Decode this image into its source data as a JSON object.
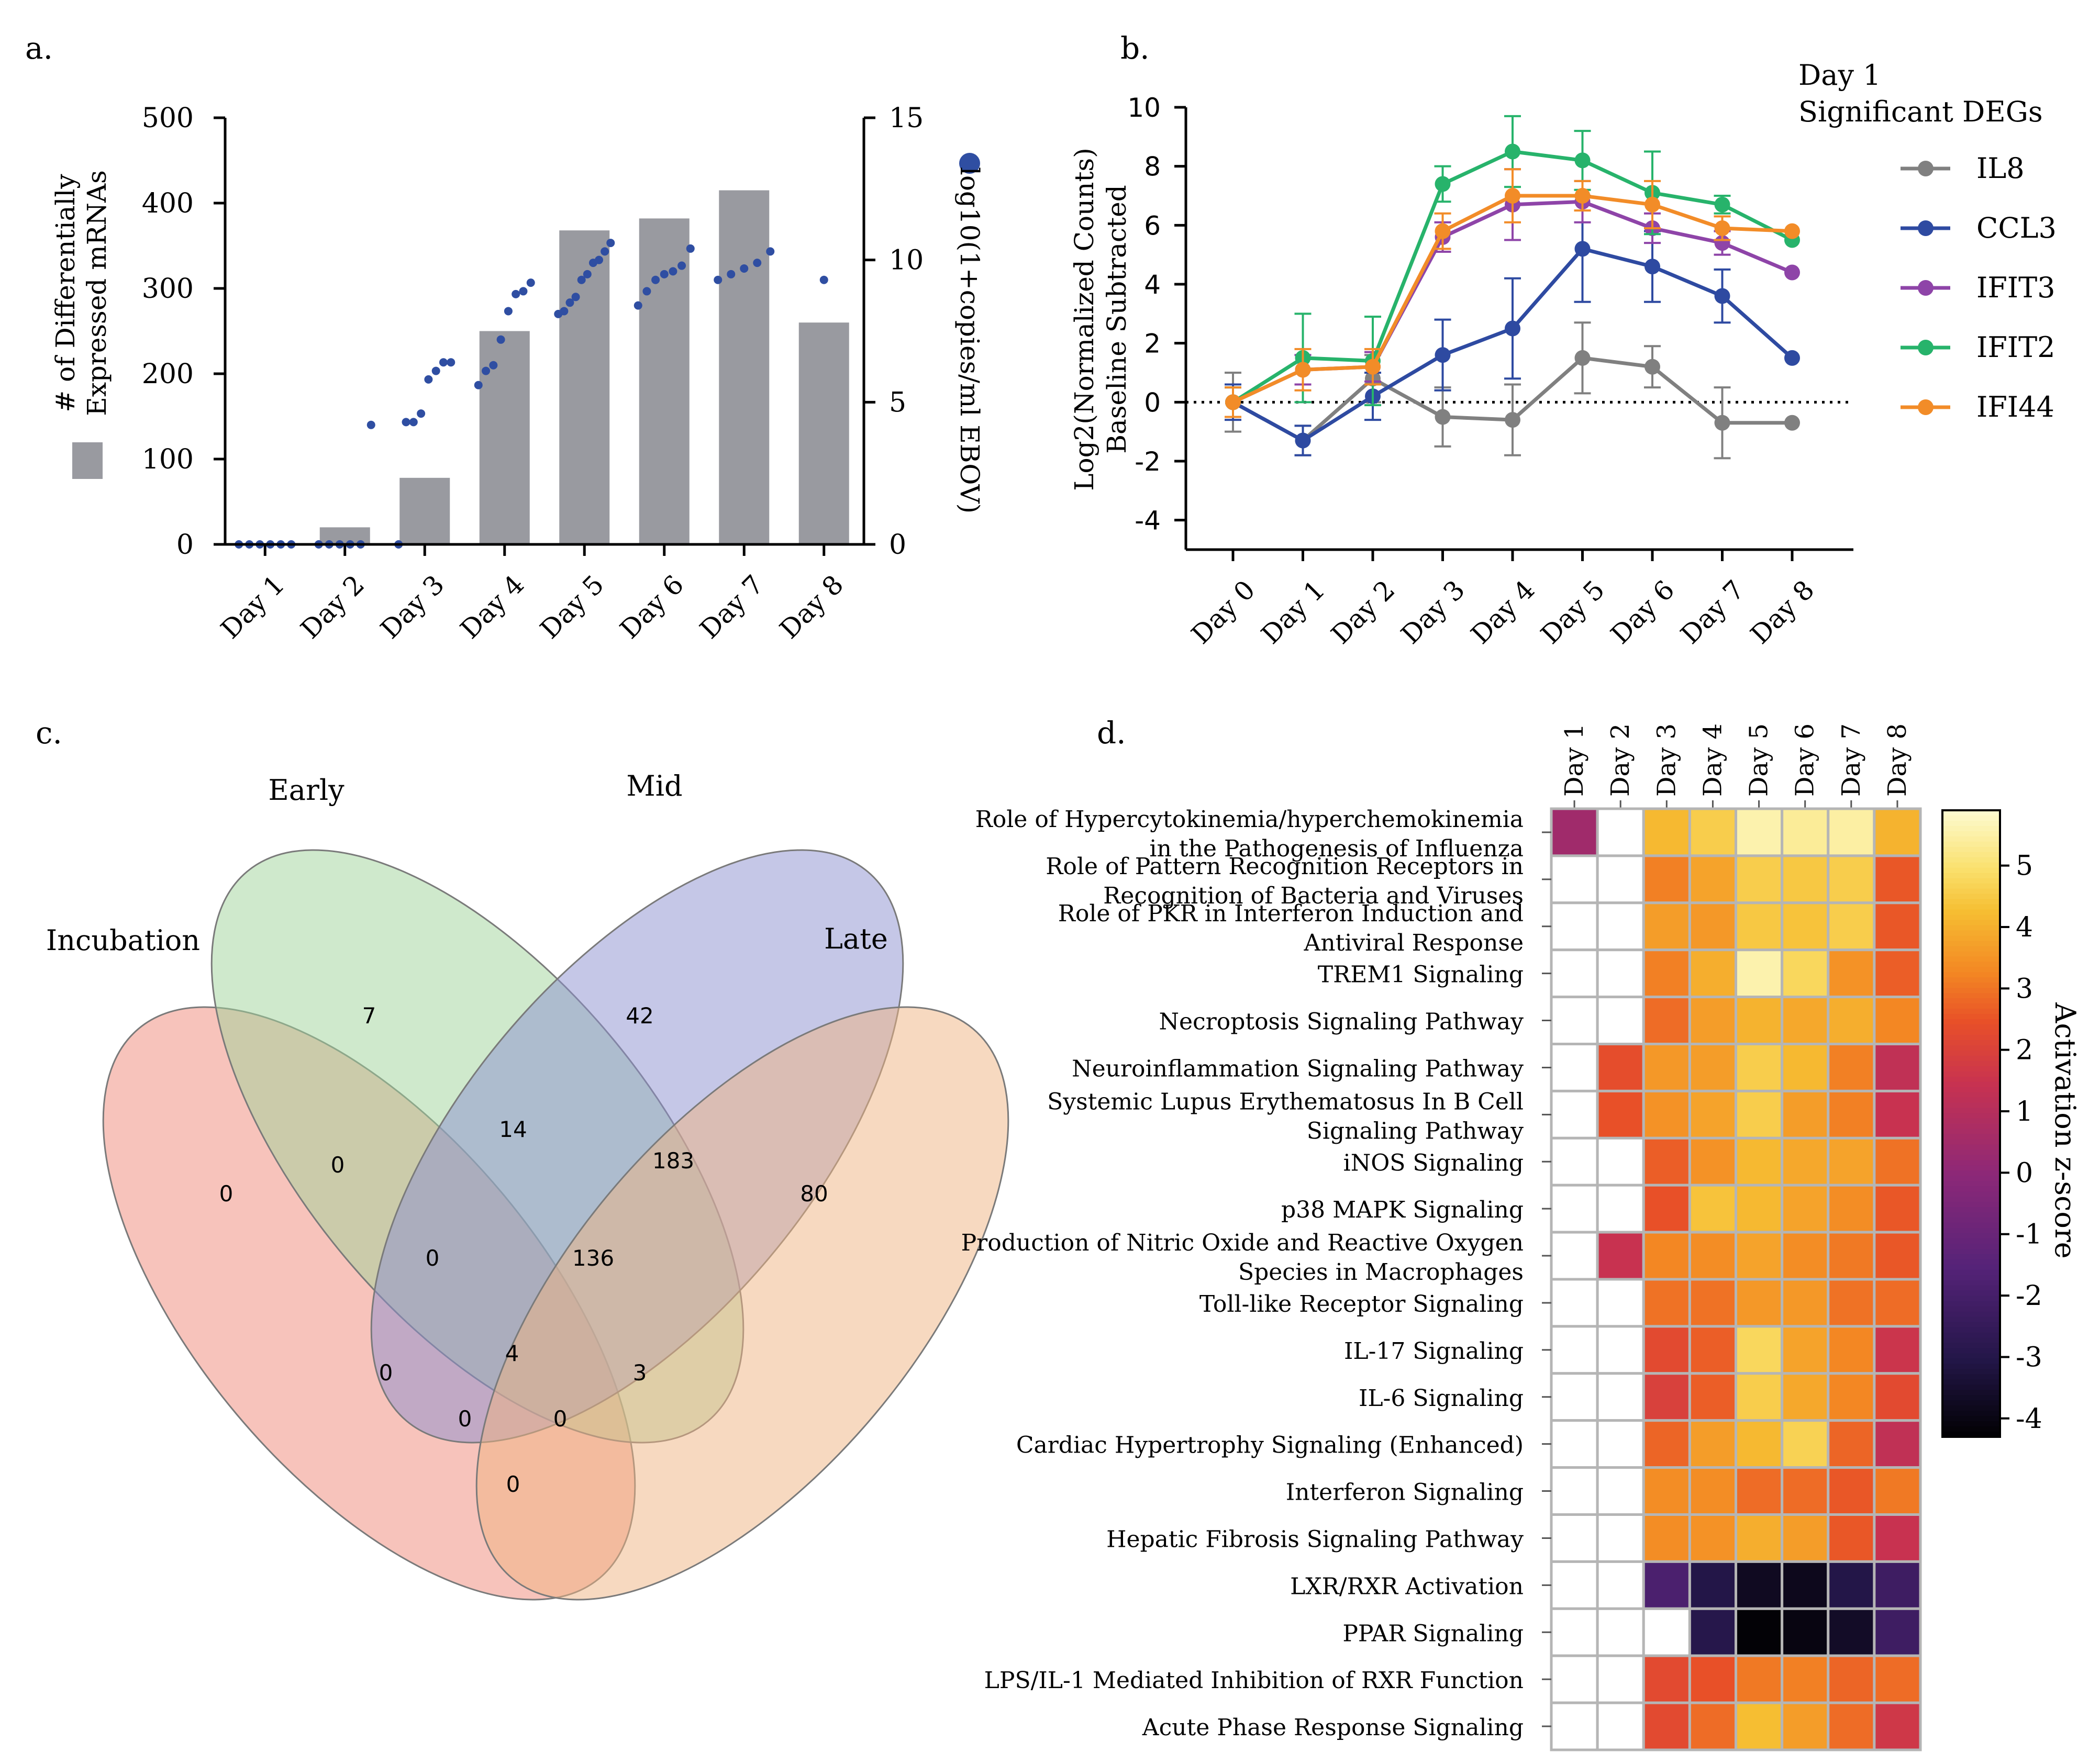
{
  "chart_data": [
    {
      "panel": "a.",
      "type": "bar",
      "categories": [
        "Day 1",
        "Day 2",
        "Day 3",
        "Day 4",
        "Day 5",
        "Day 6",
        "Day 7",
        "Day 8"
      ],
      "values": [
        0,
        20,
        78,
        250,
        368,
        382,
        415,
        260
      ],
      "ylabel_line1": "# of Differentially",
      "ylabel_line2": "Expressed mRNAs",
      "ylim": [
        0,
        500
      ],
      "yticks": [
        "0",
        "100",
        "200",
        "300",
        "400",
        "500"
      ],
      "y2label": "log10(1+copies/ml EBOV)",
      "y2ticks": [
        "0",
        "5",
        "10",
        "15"
      ],
      "y2lim": [
        0,
        15
      ],
      "scatter": [
        [
          0,
          0,
          0,
          0,
          0,
          0
        ],
        [
          0,
          0,
          0,
          0,
          0,
          4.2
        ],
        [
          0,
          4.3,
          4.3,
          4.6,
          5.8,
          6.1,
          6.4,
          6.4
        ],
        [
          5.6,
          6.1,
          6.3,
          7.2,
          8.2,
          8.8,
          8.9,
          9.2
        ],
        [
          8.1,
          8.2,
          8.5,
          8.7,
          9.3,
          9.5,
          9.9,
          10.0,
          10.3,
          10.6
        ],
        [
          8.4,
          8.9,
          9.3,
          9.5,
          9.6,
          9.8,
          10.4
        ],
        [
          9.3,
          9.5,
          9.7,
          9.9,
          10.3
        ],
        [
          9.3
        ]
      ]
    },
    {
      "panel": "b.",
      "type": "line",
      "categories": [
        "Day 0",
        "Day 1",
        "Day 2",
        "Day 3",
        "Day 4",
        "Day 5",
        "Day 6",
        "Day 7",
        "Day 8"
      ],
      "ylabel_line1": "Log2(Normalized Counts)",
      "ylabel_line2": "Baseline Subtracted",
      "ylim": [
        -5,
        10
      ],
      "yticks": [
        "-4",
        "-2",
        "0",
        "2",
        "4",
        "6",
        "8",
        "10"
      ],
      "legend_title_line1": "Day 1",
      "legend_title_line2": "Significant DEGs",
      "series": [
        {
          "name": "IL8",
          "color": "#808080",
          "values": [
            0,
            -1.3,
            0.8,
            -0.5,
            -0.6,
            1.5,
            1.2,
            -0.7,
            -0.7
          ],
          "err": [
            1.0,
            0.5,
            0.8,
            1.0,
            1.2,
            1.2,
            0.7,
            1.2,
            0
          ]
        },
        {
          "name": "CCL3",
          "color": "#2e4aa1",
          "values": [
            0,
            -1.3,
            0.2,
            1.6,
            2.5,
            5.2,
            4.6,
            3.6,
            1.5
          ],
          "err": [
            0.6,
            0.5,
            0.8,
            1.2,
            1.7,
            1.8,
            1.2,
            0.9,
            0
          ]
        },
        {
          "name": "IFIT3",
          "color": "#8e44a8",
          "values": [
            0,
            1.1,
            1.2,
            5.6,
            6.7,
            6.8,
            5.9,
            5.4,
            4.4
          ],
          "err": [
            0.5,
            0.5,
            0.5,
            0.5,
            1.2,
            0.7,
            0.5,
            0.4,
            0
          ]
        },
        {
          "name": "IFIT2",
          "color": "#27b36b",
          "values": [
            0,
            1.5,
            1.4,
            7.4,
            8.5,
            8.2,
            7.1,
            6.7,
            5.5
          ],
          "err": [
            0.5,
            1.5,
            1.5,
            0.6,
            1.2,
            1.0,
            1.4,
            0.3,
            0
          ]
        },
        {
          "name": "IFI44",
          "color": "#f28c28",
          "values": [
            0,
            1.1,
            1.2,
            5.8,
            7.0,
            7.0,
            6.7,
            5.9,
            5.8
          ],
          "err": [
            0.5,
            0.7,
            0.6,
            0.6,
            0.9,
            0.5,
            0.8,
            0.4,
            0
          ]
        }
      ]
    },
    {
      "panel": "c.",
      "type": "venn",
      "sets": [
        "Incubation",
        "Early",
        "Mid",
        "Late"
      ],
      "regions": [
        {
          "sets": "Incubation only",
          "value": "0"
        },
        {
          "sets": "Early only",
          "value": "7"
        },
        {
          "sets": "Mid only",
          "value": "42"
        },
        {
          "sets": "Late only",
          "value": "80"
        },
        {
          "sets": "Incubation & Early",
          "value": "0"
        },
        {
          "sets": "Early & Mid",
          "value": "14"
        },
        {
          "sets": "Mid & Late",
          "value": "183"
        },
        {
          "sets": "Incubation & Early & Mid",
          "value": "0"
        },
        {
          "sets": "Early & Mid & Late",
          "value": "136"
        },
        {
          "sets": "Incubation & Mid",
          "value": "0"
        },
        {
          "sets": "All four",
          "value": "4"
        },
        {
          "sets": "Early & Late",
          "value": "3"
        },
        {
          "sets": "Incubation & Mid & Late",
          "value": "0"
        },
        {
          "sets": "Incubation & Early & Late",
          "value": "0"
        },
        {
          "sets": "Incubation & Late",
          "value": "0"
        }
      ]
    },
    {
      "panel": "d.",
      "type": "heatmap",
      "columns": [
        "Day 1",
        "Day 2",
        "Day 3",
        "Day 4",
        "Day 5",
        "Day 6",
        "Day 7",
        "Day 8"
      ],
      "rows": [
        {
          "label": [
            "Role of Hypercytokinemia/hyperchemokinemia",
            "in the Pathogenesis of Influenza"
          ],
          "values": [
            0.5,
            null,
            4.2,
            4.6,
            5.6,
            5.4,
            5.5,
            4.1
          ]
        },
        {
          "label": [
            "Role of Pattern Recognition Receptors in",
            "Recognition of Bacteria and Viruses"
          ],
          "values": [
            null,
            null,
            3.2,
            3.8,
            4.6,
            4.5,
            4.6,
            2.6
          ]
        },
        {
          "label": [
            "Role of PKR in Interferon Induction and",
            "Antiviral Response"
          ],
          "values": [
            null,
            null,
            3.7,
            3.6,
            4.5,
            4.4,
            4.6,
            2.6
          ]
        },
        {
          "label": [
            "TREM1 Signaling"
          ],
          "values": [
            null,
            null,
            3.2,
            4.0,
            5.6,
            4.8,
            3.5,
            2.7
          ]
        },
        {
          "label": [
            "Necroptosis Signaling Pathway"
          ],
          "values": [
            null,
            null,
            2.9,
            3.7,
            4.1,
            3.9,
            4.0,
            3.3
          ]
        },
        {
          "label": [
            "Neuroinflammation Signaling Pathway"
          ],
          "values": [
            null,
            2.4,
            3.6,
            3.7,
            4.6,
            4.2,
            3.2,
            1.3
          ]
        },
        {
          "label": [
            "Systemic Lupus Erythematosus In B Cell",
            "Signaling Pathway"
          ],
          "values": [
            null,
            2.5,
            3.5,
            3.8,
            4.6,
            3.7,
            3.2,
            1.5
          ]
        },
        {
          "label": [
            "iNOS Signaling"
          ],
          "values": [
            null,
            null,
            2.7,
            3.5,
            4.2,
            3.9,
            3.8,
            3.0
          ]
        },
        {
          "label": [
            "p38 MAPK Signaling"
          ],
          "values": [
            null,
            null,
            2.5,
            4.4,
            4.2,
            3.8,
            3.4,
            2.6
          ]
        },
        {
          "label": [
            "Production of Nitric Oxide and Reactive Oxygen",
            "Species in Macrophages"
          ],
          "values": [
            null,
            1.5,
            3.3,
            3.4,
            3.8,
            3.4,
            3.1,
            2.6
          ]
        },
        {
          "label": [
            "Toll-like Receptor Signaling"
          ],
          "values": [
            null,
            null,
            3.0,
            3.0,
            3.6,
            3.6,
            3.0,
            2.9
          ]
        },
        {
          "label": [
            "IL-17 Signaling"
          ],
          "values": [
            null,
            null,
            2.3,
            2.7,
            4.8,
            3.8,
            3.3,
            1.6
          ]
        },
        {
          "label": [
            "IL-6 Signaling"
          ],
          "values": [
            null,
            null,
            2.0,
            2.7,
            4.6,
            3.9,
            3.3,
            2.3
          ]
        },
        {
          "label": [
            "Cardiac Hypertrophy Signaling (Enhanced)"
          ],
          "values": [
            null,
            null,
            2.8,
            3.7,
            4.2,
            4.7,
            2.8,
            1.3
          ]
        },
        {
          "label": [
            "Interferon Signaling"
          ],
          "values": [
            null,
            null,
            3.4,
            3.4,
            2.9,
            2.9,
            2.6,
            3.1
          ]
        },
        {
          "label": [
            "Hepatic Fibrosis Signaling Pathway"
          ],
          "values": [
            null,
            null,
            3.4,
            3.5,
            4.0,
            3.7,
            2.6,
            1.5
          ]
        },
        {
          "label": [
            "LXR/RXR Activation"
          ],
          "values": [
            null,
            null,
            -1.8,
            -3.0,
            -3.7,
            -3.8,
            -3.0,
            -2.2
          ]
        },
        {
          "label": [
            "PPAR Signaling"
          ],
          "values": [
            null,
            null,
            null,
            -2.9,
            -4.2,
            -4.0,
            -3.6,
            -2.2
          ]
        },
        {
          "label": [
            "LPS/IL-1 Mediated Inhibition of RXR Function"
          ],
          "values": [
            null,
            null,
            2.3,
            2.5,
            3.1,
            3.2,
            2.8,
            2.9
          ]
        },
        {
          "label": [
            "Acute Phase Response Signaling"
          ],
          "values": [
            null,
            null,
            2.3,
            2.9,
            4.3,
            3.7,
            2.9,
            1.7
          ]
        }
      ],
      "colorbar_label": "Activation z-score",
      "colorbar_ticks": [
        "-4",
        "-3",
        "-2",
        "-1",
        "0",
        "1",
        "2",
        "3",
        "4",
        "5"
      ],
      "zlim": [
        -4.3,
        5.9
      ]
    }
  ]
}
